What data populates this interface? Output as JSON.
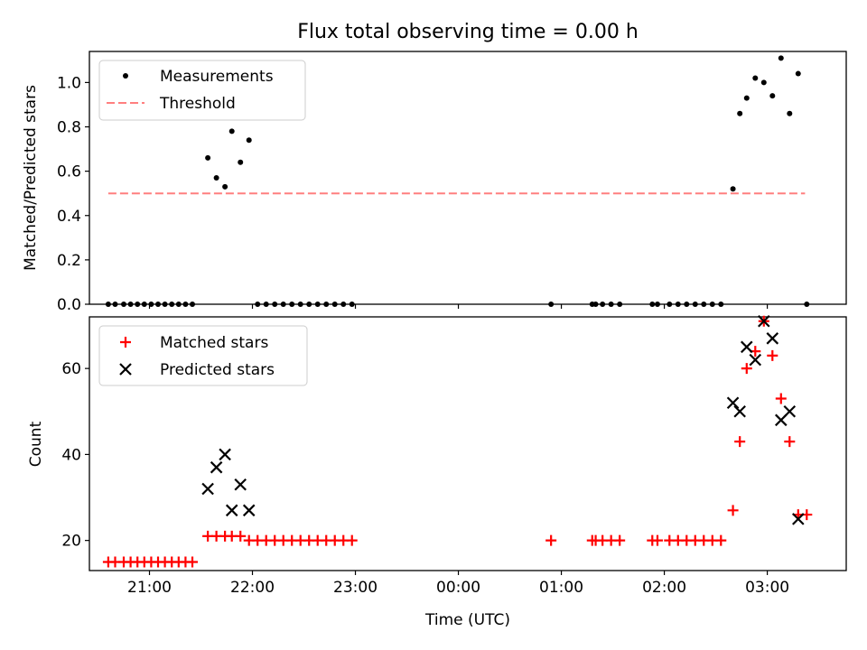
{
  "chart_data": [
    {
      "type": "scatter",
      "title": "Flux total observing time = 0.00 h",
      "ylabel": "Matched/Predicted stars",
      "xlabel": "",
      "ylim": [
        0,
        1.14
      ],
      "yticks": [
        "0.0",
        "0.2",
        "0.4",
        "0.6",
        "0.8",
        "1.0"
      ],
      "xticks": [
        "21:00",
        "22:00",
        "23:00",
        "00:00",
        "01:00",
        "02:00",
        "03:00"
      ],
      "xlim": [
        "20:25",
        "03:46"
      ],
      "legend": {
        "position": "upper-left",
        "entries": [
          "Measurements",
          "Threshold"
        ]
      },
      "threshold": {
        "name": "Threshold",
        "value": 0.5,
        "x_start": "20:36",
        "x_end": "03:22",
        "color": "#ff7f7f"
      },
      "series": [
        {
          "name": "Measurements",
          "color": "#000000",
          "marker": "dot",
          "points": [
            [
              "20:36",
              0
            ],
            [
              "20:40",
              0
            ],
            [
              "20:45",
              0
            ],
            [
              "20:49",
              0
            ],
            [
              "20:53",
              0
            ],
            [
              "20:57",
              0
            ],
            [
              "21:01",
              0
            ],
            [
              "21:05",
              0
            ],
            [
              "21:09",
              0
            ],
            [
              "21:13",
              0
            ],
            [
              "21:17",
              0
            ],
            [
              "21:21",
              0
            ],
            [
              "21:25",
              0.0
            ],
            [
              "21:34",
              0.66
            ],
            [
              "21:39",
              0.57
            ],
            [
              "21:44",
              0.53
            ],
            [
              "21:48",
              0.78
            ],
            [
              "21:53",
              0.64
            ],
            [
              "21:58",
              0.74
            ],
            [
              "22:03",
              0
            ],
            [
              "22:08",
              0
            ],
            [
              "22:13",
              0
            ],
            [
              "22:18",
              0
            ],
            [
              "22:23",
              0
            ],
            [
              "22:28",
              0
            ],
            [
              "22:33",
              0
            ],
            [
              "22:38",
              0
            ],
            [
              "22:43",
              0
            ],
            [
              "22:48",
              0
            ],
            [
              "22:53",
              0
            ],
            [
              "22:58",
              0
            ],
            [
              "00:54",
              0
            ],
            [
              "01:18",
              0
            ],
            [
              "01:20",
              0
            ],
            [
              "01:24",
              0
            ],
            [
              "01:29",
              0
            ],
            [
              "01:34",
              0
            ],
            [
              "01:53",
              0
            ],
            [
              "01:56",
              0
            ],
            [
              "02:03",
              0
            ],
            [
              "02:08",
              0
            ],
            [
              "02:13",
              0
            ],
            [
              "02:18",
              0
            ],
            [
              "02:23",
              0
            ],
            [
              "02:28",
              0
            ],
            [
              "02:33",
              0
            ],
            [
              "02:40",
              0.52
            ],
            [
              "02:44",
              0.86
            ],
            [
              "02:48",
              0.93
            ],
            [
              "02:53",
              1.02
            ],
            [
              "02:58",
              1.0
            ],
            [
              "03:03",
              0.94
            ],
            [
              "03:08",
              1.11
            ],
            [
              "03:13",
              0.86
            ],
            [
              "03:18",
              1.04
            ],
            [
              "03:23",
              0
            ]
          ]
        }
      ]
    },
    {
      "type": "scatter",
      "title": "",
      "ylabel": "Count",
      "xlabel": "Time (UTC)",
      "ylim": [
        13,
        72
      ],
      "yticks": [
        "20",
        "40",
        "60"
      ],
      "xticks": [
        "21:00",
        "22:00",
        "23:00",
        "00:00",
        "01:00",
        "02:00",
        "03:00"
      ],
      "xlim": [
        "20:25",
        "03:46"
      ],
      "legend": {
        "position": "upper-left",
        "entries": [
          "Matched stars",
          "Predicted stars"
        ]
      },
      "series": [
        {
          "name": "Matched stars",
          "color": "#ff0000",
          "marker": "plus",
          "points": [
            [
              "20:36",
              15
            ],
            [
              "20:40",
              15
            ],
            [
              "20:45",
              15
            ],
            [
              "20:49",
              15
            ],
            [
              "20:53",
              15
            ],
            [
              "20:57",
              15
            ],
            [
              "21:01",
              15
            ],
            [
              "21:05",
              15
            ],
            [
              "21:09",
              15
            ],
            [
              "21:13",
              15
            ],
            [
              "21:17",
              15
            ],
            [
              "21:21",
              15
            ],
            [
              "21:25",
              15
            ],
            [
              "21:34",
              21
            ],
            [
              "21:39",
              21
            ],
            [
              "21:44",
              21
            ],
            [
              "21:48",
              21
            ],
            [
              "21:53",
              21
            ],
            [
              "21:58",
              20
            ],
            [
              "22:03",
              20
            ],
            [
              "22:08",
              20
            ],
            [
              "22:13",
              20
            ],
            [
              "22:18",
              20
            ],
            [
              "22:23",
              20
            ],
            [
              "22:28",
              20
            ],
            [
              "22:33",
              20
            ],
            [
              "22:38",
              20
            ],
            [
              "22:43",
              20
            ],
            [
              "22:48",
              20
            ],
            [
              "22:53",
              20
            ],
            [
              "22:58",
              20
            ],
            [
              "00:54",
              20
            ],
            [
              "01:18",
              20
            ],
            [
              "01:20",
              20
            ],
            [
              "01:24",
              20
            ],
            [
              "01:29",
              20
            ],
            [
              "01:34",
              20
            ],
            [
              "01:53",
              20
            ],
            [
              "01:56",
              20
            ],
            [
              "02:03",
              20
            ],
            [
              "02:08",
              20
            ],
            [
              "02:13",
              20
            ],
            [
              "02:18",
              20
            ],
            [
              "02:23",
              20
            ],
            [
              "02:28",
              20
            ],
            [
              "02:33",
              20
            ],
            [
              "02:40",
              27
            ],
            [
              "02:44",
              43
            ],
            [
              "02:48",
              60
            ],
            [
              "02:53",
              64
            ],
            [
              "02:58",
              71
            ],
            [
              "03:03",
              63
            ],
            [
              "03:08",
              53
            ],
            [
              "03:13",
              43
            ],
            [
              "03:18",
              26
            ],
            [
              "03:23",
              26
            ]
          ]
        },
        {
          "name": "Predicted stars",
          "color": "#000000",
          "marker": "x",
          "points": [
            [
              "21:34",
              32
            ],
            [
              "21:39",
              37
            ],
            [
              "21:44",
              40
            ],
            [
              "21:48",
              27
            ],
            [
              "21:53",
              33
            ],
            [
              "21:58",
              27
            ],
            [
              "02:40",
              52
            ],
            [
              "02:44",
              50
            ],
            [
              "02:48",
              65
            ],
            [
              "02:53",
              62
            ],
            [
              "02:58",
              71
            ],
            [
              "03:03",
              67
            ],
            [
              "03:08",
              48
            ],
            [
              "03:13",
              50
            ],
            [
              "03:18",
              25
            ]
          ]
        }
      ]
    }
  ]
}
